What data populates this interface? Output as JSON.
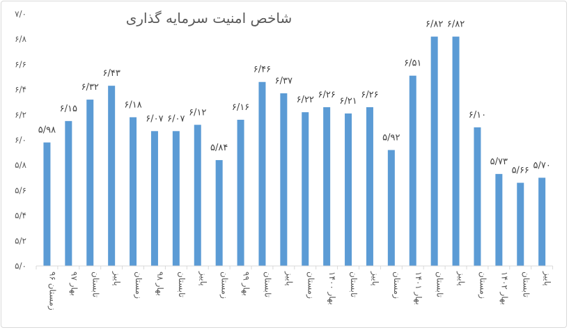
{
  "chart_data": {
    "type": "bar",
    "title": "شاخص امنیت سرمایه گذاری",
    "xlabel": "",
    "ylabel": "",
    "ylim": [
      5.0,
      7.0
    ],
    "yticks": [
      5.0,
      5.2,
      5.4,
      5.6,
      5.8,
      6.0,
      6.2,
      6.4,
      6.6,
      6.8,
      7.0
    ],
    "ytick_labels": [
      "۵/۰",
      "۵/۲",
      "۵/۴",
      "۵/۶",
      "۵/۸",
      "۶/۰",
      "۶/۲",
      "۶/۴",
      "۶/۶",
      "۶/۸",
      "۷/۰"
    ],
    "grid": false,
    "bar_color": "#5B9BD5",
    "categories": [
      "زمستان ۹۶",
      "بهار ۹۷",
      "تابستان",
      "پاییز",
      "زمستان",
      "بهار ۹۸",
      "تابستان",
      "پاییز",
      "زمستان",
      "بهار ۹۹",
      "تابستان",
      "پاییز",
      "زمستان",
      "بهار ۱۴۰۰",
      "تابستان",
      "پاییز",
      "زمستان",
      "بهار ۱۴۰۱",
      "تابستان",
      "پاییز",
      "زمستان",
      "بهار ۱۴۰۲",
      "تابستان",
      "پاییز"
    ],
    "values": [
      5.98,
      6.15,
      6.32,
      6.43,
      6.18,
      6.07,
      6.07,
      6.12,
      5.84,
      6.16,
      6.46,
      6.37,
      6.22,
      6.26,
      6.21,
      6.26,
      5.92,
      6.51,
      6.82,
      6.82,
      6.1,
      5.73,
      5.66,
      5.7
    ],
    "data_labels": [
      "۵/۹۸",
      "۶/۱۵",
      "۶/۳۲",
      "۶/۴۳",
      "۶/۱۸",
      "۶/۰۷",
      "۶/۰۷",
      "۶/۱۲",
      "۵/۸۴",
      "۶/۱۶",
      "۶/۴۶",
      "۶/۳۷",
      "۶/۲۲",
      "۶/۲۶",
      "۶/۲۱",
      "۶/۲۶",
      "۵/۹۲",
      "۶/۵۱",
      "۶/۸۲",
      "۶/۸۲",
      "۶/۱۰",
      "۵/۷۳",
      "۵/۶۶",
      "۵/۷۰"
    ]
  }
}
